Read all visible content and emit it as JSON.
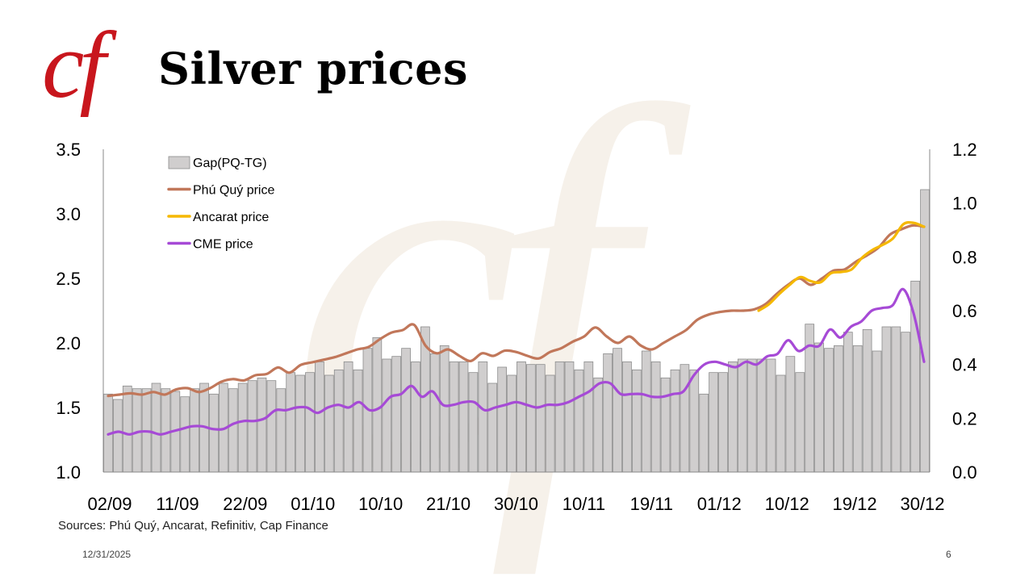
{
  "slide": {
    "logo_text": "cf",
    "title": "Silver prices",
    "sources": "Sources: Phú Quý, Ancarat, Refinitiv, Cap Finance",
    "date": "12/31/2025",
    "page_number": "6"
  },
  "colors": {
    "brand_red": "#c8161d",
    "bar_fill": "#d0cece",
    "phu_quy": "#c1775a",
    "ancarat": "#f5b800",
    "cme": "#a64ad6"
  },
  "chart_data": {
    "type": "bar+line",
    "title": "Silver prices",
    "x_tick_labels": [
      "02/09",
      "11/09",
      "22/09",
      "01/10",
      "10/10",
      "21/10",
      "30/10",
      "10/11",
      "19/11",
      "01/12",
      "10/12",
      "19/12",
      "30/12"
    ],
    "y_left": {
      "ylim": [
        1.0,
        3.5
      ],
      "ticks": [
        "1.0",
        "1.5",
        "2.0",
        "2.5",
        "3.0",
        "3.5"
      ]
    },
    "y_right": {
      "ylim": [
        0.0,
        1.2
      ],
      "ticks": [
        "0.0",
        "0.2",
        "0.4",
        "0.6",
        "0.8",
        "1.0",
        "1.2"
      ]
    },
    "legend": {
      "position": "top-left",
      "entries": [
        "Gap(PQ-TG)",
        "Phú Quý price",
        "Ancarat price",
        "CME price"
      ]
    },
    "series": [
      {
        "name": "Gap(PQ-TG)",
        "type": "bar",
        "axis": "right",
        "values": [
          0.29,
          0.27,
          0.32,
          0.31,
          0.31,
          0.33,
          0.31,
          0.3,
          0.28,
          0.31,
          0.33,
          0.29,
          0.33,
          0.31,
          0.33,
          0.34,
          0.35,
          0.34,
          0.31,
          0.37,
          0.36,
          0.37,
          0.41,
          0.36,
          0.38,
          0.41,
          0.38,
          0.46,
          0.5,
          0.42,
          0.43,
          0.46,
          0.41,
          0.54,
          0.44,
          0.47,
          0.41,
          0.41,
          0.37,
          0.41,
          0.33,
          0.39,
          0.36,
          0.41,
          0.4,
          0.4,
          0.36,
          0.41,
          0.41,
          0.38,
          0.41,
          0.35,
          0.44,
          0.46,
          0.41,
          0.38,
          0.45,
          0.41,
          0.35,
          0.38,
          0.4,
          0.38,
          0.29,
          0.37,
          0.37,
          0.41,
          0.42,
          0.42,
          0.42,
          0.42,
          0.36,
          0.43,
          0.37,
          0.55,
          0.48,
          0.46,
          0.47,
          0.52,
          0.47,
          0.53,
          0.45,
          0.54,
          0.54,
          0.52,
          0.71,
          1.05
        ]
      },
      {
        "name": "Phú Quý price",
        "type": "line",
        "axis": "left",
        "values": [
          1.59,
          1.6,
          1.61,
          1.6,
          1.62,
          1.6,
          1.64,
          1.65,
          1.62,
          1.65,
          1.7,
          1.72,
          1.71,
          1.75,
          1.76,
          1.81,
          1.77,
          1.83,
          1.85,
          1.87,
          1.89,
          1.92,
          1.95,
          1.97,
          2.03,
          2.08,
          2.1,
          2.14,
          1.98,
          1.92,
          1.95,
          1.9,
          1.86,
          1.92,
          1.9,
          1.94,
          1.93,
          1.9,
          1.88,
          1.93,
          1.96,
          2.01,
          2.05,
          2.12,
          2.05,
          2.0,
          2.05,
          1.98,
          1.95,
          2.0,
          2.05,
          2.1,
          2.18,
          2.22,
          2.24,
          2.25,
          2.25,
          2.26,
          2.3,
          2.38,
          2.45,
          2.5,
          2.45,
          2.5,
          2.56,
          2.57,
          2.63,
          2.68,
          2.74,
          2.84,
          2.88,
          2.91,
          2.9
        ]
      },
      {
        "name": "Ancarat price",
        "type": "line",
        "axis": "left",
        "values": [
          2.25,
          2.3,
          2.38,
          2.45,
          2.51,
          2.48,
          2.47,
          2.54,
          2.55,
          2.57,
          2.66,
          2.72,
          2.76,
          2.81,
          2.92,
          2.93,
          2.9
        ]
      },
      {
        "name": "CME price",
        "type": "line",
        "axis": "right",
        "values": [
          0.14,
          0.15,
          0.14,
          0.15,
          0.15,
          0.14,
          0.15,
          0.16,
          0.17,
          0.17,
          0.16,
          0.16,
          0.18,
          0.19,
          0.19,
          0.2,
          0.23,
          0.23,
          0.24,
          0.24,
          0.22,
          0.24,
          0.25,
          0.24,
          0.26,
          0.23,
          0.24,
          0.28,
          0.29,
          0.32,
          0.28,
          0.3,
          0.25,
          0.25,
          0.26,
          0.26,
          0.23,
          0.24,
          0.25,
          0.26,
          0.25,
          0.24,
          0.25,
          0.25,
          0.26,
          0.28,
          0.3,
          0.33,
          0.33,
          0.29,
          0.29,
          0.29,
          0.28,
          0.28,
          0.29,
          0.3,
          0.36,
          0.4,
          0.41,
          0.4,
          0.39,
          0.41,
          0.4,
          0.43,
          0.44,
          0.49,
          0.45,
          0.47,
          0.47,
          0.53,
          0.5,
          0.54,
          0.56,
          0.6,
          0.61,
          0.62,
          0.68,
          0.59,
          0.41
        ]
      }
    ]
  }
}
